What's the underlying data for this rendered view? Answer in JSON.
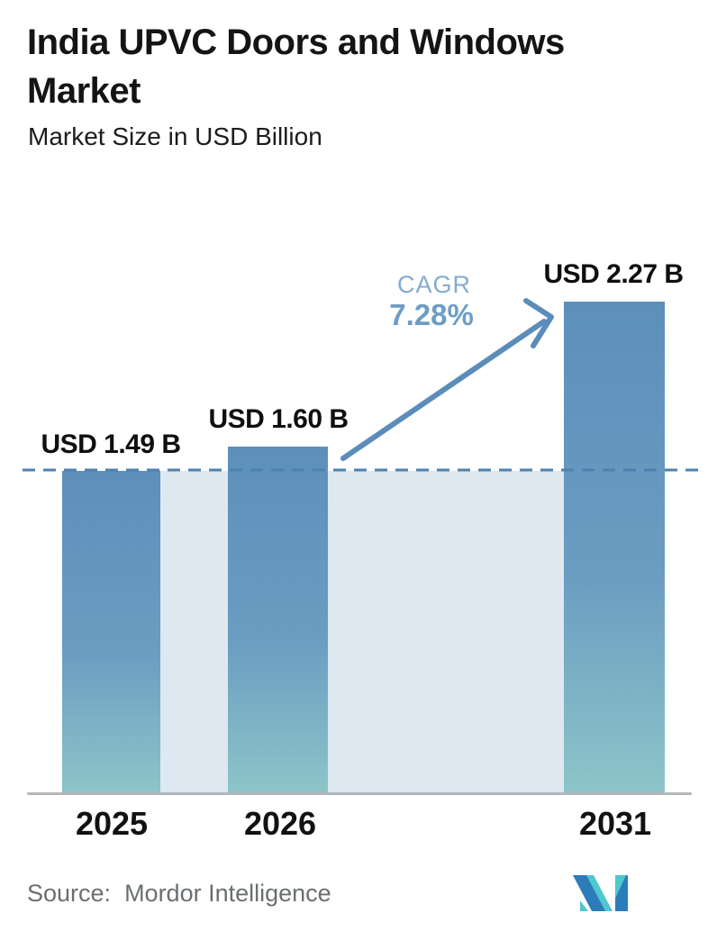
{
  "header": {
    "title": "India UPVC Doors and Windows Market",
    "subtitle": "Market Size in USD Billion"
  },
  "chart_data": {
    "type": "bar",
    "title": "India UPVC Doors and Windows Market",
    "subtitle": "Market Size in USD Billion",
    "unit": "USD Billion",
    "categories": [
      "2025",
      "2026",
      "2031"
    ],
    "values": [
      1.49,
      1.6,
      2.27
    ],
    "value_labels": [
      "USD 1.49 B",
      "USD 1.60 B",
      "USD 2.27 B"
    ],
    "ylim": [
      0,
      2.27
    ],
    "grid": false,
    "legend": "none",
    "reference_line": {
      "style": "dashed",
      "at_value": 1.49
    },
    "annotation": {
      "label": "CAGR",
      "value": "7.28%",
      "arrow": "from 2026 bar to 2031 bar"
    }
  },
  "annotation": {
    "cagr_label": "CAGR",
    "cagr_value": "7.28%"
  },
  "footer": {
    "source_label": "Source:",
    "source_name": "Mordor Intelligence",
    "logo": "mordor-intelligence-logo"
  },
  "colors": {
    "bar_top": "#5d8fbb",
    "bar_mid": "#6b9cc1",
    "bar_bottom": "#8dc5c9",
    "band": "#dde8f1",
    "dash": "#4d82b0",
    "arrow": "#5b8cba",
    "cagr": "#84abcf",
    "cagr_strong": "#6d9dc6",
    "text": "#141414",
    "muted": "#6b6f71",
    "axis": "#b4b7b9",
    "logo_teal": "#4ec7d0",
    "logo_blue": "#2b7cb8"
  }
}
